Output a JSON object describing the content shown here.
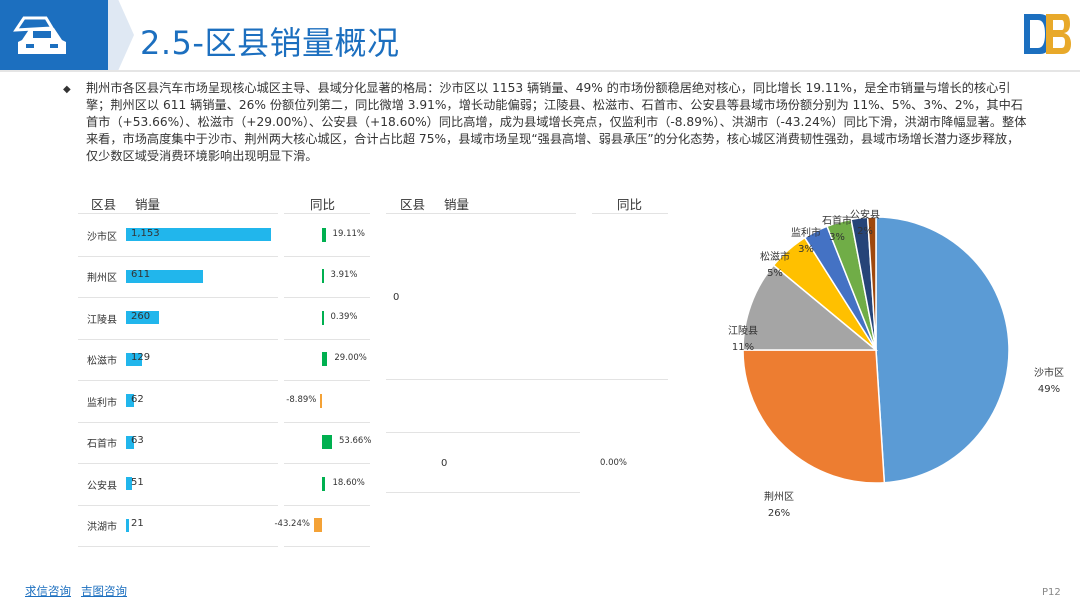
{
  "header": {
    "title": "2.5-区县销量概况",
    "icon": "car-icon",
    "logo": "brand-logo"
  },
  "summary": "荆州市各区县汽车市场呈现核心城区主导、县域分化显著的格局：沙市区以 1153 辆销量、49% 的市场份额稳居绝对核心，同比增长 19.11%，是全市销量与增长的核心引擎；荆州区以 611 辆销量、26% 份额位列第二，同比微增 3.91%，增长动能偏弱；江陵县、松滋市、石首市、公安县等县域市场份额分别为 11%、5%、3%、2%，其中石首市（+53.66%）、松滋市（+29.00%）、公安县（+18.60%）同比高增，成为县域增长亮点，仅监利市（-8.89%）、洪湖市（-43.24%）同比下滑，洪湖市降幅显著。整体来看，市场高度集中于沙市、荆州两大核心城区，合计占比超 75%，县域市场呈现“强县高增、弱县承压”的分化态势，核心城区消费韧性强劲，县域市场增长潜力逐步释放，仅少数区域受消费环境影响出现明显下滑。",
  "table1": {
    "headers": {
      "district": "区县",
      "sales": "销量",
      "yoy": "同比"
    },
    "rows": [
      {
        "district": "沙市区",
        "sales": 1153,
        "sales_label": "1,153",
        "yoy": 19.11,
        "yoy_label": "19.11%"
      },
      {
        "district": "荆州区",
        "sales": 611,
        "sales_label": "611",
        "yoy": 3.91,
        "yoy_label": "3.91%"
      },
      {
        "district": "江陵县",
        "sales": 260,
        "sales_label": "260",
        "yoy": 0.39,
        "yoy_label": "0.39%"
      },
      {
        "district": "松滋市",
        "sales": 129,
        "sales_label": "129",
        "yoy": 29.0,
        "yoy_label": "29.00%"
      },
      {
        "district": "监利市",
        "sales": 62,
        "sales_label": "62",
        "yoy": -8.89,
        "yoy_label": "-8.89%"
      },
      {
        "district": "石首市",
        "sales": 63,
        "sales_label": "63",
        "yoy": 53.66,
        "yoy_label": "53.66%"
      },
      {
        "district": "公安县",
        "sales": 51,
        "sales_label": "51",
        "yoy": 18.6,
        "yoy_label": "18.60%"
      },
      {
        "district": "洪湖市",
        "sales": 21,
        "sales_label": "21",
        "yoy": -43.24,
        "yoy_label": "-43.24%"
      }
    ]
  },
  "table2": {
    "headers": {
      "district": "区县",
      "sales": "销量",
      "yoy": "同比"
    },
    "val_a": "0",
    "val_b": "0",
    "val_c": "0.00%"
  },
  "chart_data": {
    "type": "pie",
    "slices": [
      {
        "name": "沙市区",
        "value": 49,
        "label": "49%",
        "color": "#5b9bd5"
      },
      {
        "name": "荆州区",
        "value": 26,
        "label": "26%",
        "color": "#ed7d31"
      },
      {
        "name": "江陵县",
        "value": 11,
        "label": "11%",
        "color": "#a5a5a5"
      },
      {
        "name": "松滋市",
        "value": 5,
        "label": "5%",
        "color": "#ffc000"
      },
      {
        "name": "监利市",
        "value": 3,
        "label": "3%",
        "color": "#4472c4"
      },
      {
        "name": "石首市",
        "value": 3,
        "label": "3%",
        "color": "#70ad47"
      },
      {
        "name": "公安县",
        "value": 2,
        "label": "2%",
        "color": "#264478"
      },
      {
        "name": "洪湖市",
        "value": 1,
        "label": "",
        "color": "#9e480e"
      }
    ]
  },
  "colors": {
    "positive": "#00b050",
    "negative": "#f4a236",
    "sales_bar": "#21b6ec",
    "brand": "#1c6fbf"
  },
  "footer": {
    "link1": "求信咨询",
    "link2": "吉图咨询",
    "page": "P12"
  }
}
